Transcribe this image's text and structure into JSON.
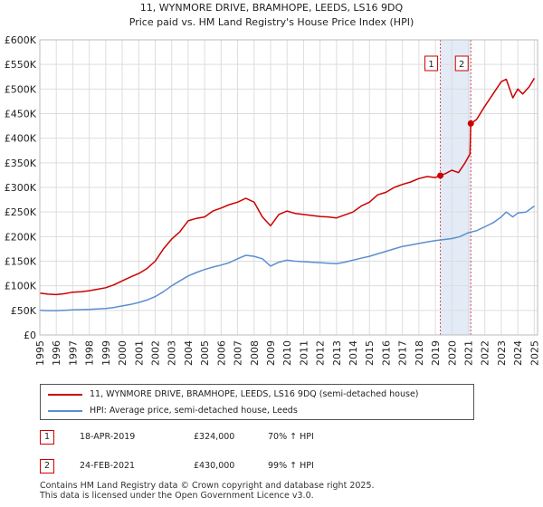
{
  "colors": {
    "property": "#cc0000",
    "hpi": "#5b8fd0",
    "grid": "#dddddd",
    "band": "#dce6f5"
  },
  "chart_data": {
    "type": "line",
    "title": "11, WYNMORE DRIVE, BRAMHOPE, LEEDS, LS16 9DQ",
    "subtitle": "Price paid vs. HM Land Registry's House Price Index (HPI)",
    "xlabel": "",
    "ylabel": "",
    "xlim": [
      1995,
      2025.2
    ],
    "ylim": [
      0,
      600000
    ],
    "grid": true,
    "x_ticks": [
      "1995",
      "1996",
      "1997",
      "1998",
      "1999",
      "2000",
      "2001",
      "2002",
      "2003",
      "2004",
      "2005",
      "2006",
      "2007",
      "2008",
      "2009",
      "2010",
      "2011",
      "2012",
      "2013",
      "2014",
      "2015",
      "2016",
      "2017",
      "2018",
      "2019",
      "2020",
      "2021",
      "2022",
      "2023",
      "2024",
      "2025"
    ],
    "y_ticks": [
      {
        "value": 0,
        "label": "£0"
      },
      {
        "value": 50000,
        "label": "£50K"
      },
      {
        "value": 100000,
        "label": "£100K"
      },
      {
        "value": 150000,
        "label": "£150K"
      },
      {
        "value": 200000,
        "label": "£200K"
      },
      {
        "value": 250000,
        "label": "£250K"
      },
      {
        "value": 300000,
        "label": "£300K"
      },
      {
        "value": 350000,
        "label": "£350K"
      },
      {
        "value": 400000,
        "label": "£400K"
      },
      {
        "value": 450000,
        "label": "£450K"
      },
      {
        "value": 500000,
        "label": "£500K"
      },
      {
        "value": 550000,
        "label": "£550K"
      },
      {
        "value": 600000,
        "label": "£600K"
      }
    ],
    "shaded_band": {
      "x_start": 2019.3,
      "x_end": 2021.15
    },
    "markers": [
      {
        "label": "1",
        "x": 2019.3,
        "y": 324000
      },
      {
        "label": "2",
        "x": 2021.15,
        "y": 430000
      }
    ],
    "series": [
      {
        "name": "11, WYNMORE DRIVE, BRAMHOPE, LEEDS, LS16 9DQ (semi-detached house)",
        "color": "#cc0000",
        "x": [
          1995,
          1995.5,
          1996,
          1996.5,
          1997,
          1997.5,
          1998,
          1998.5,
          1999,
          1999.5,
          2000,
          2000.5,
          2001,
          2001.5,
          2002,
          2002.5,
          2003,
          2003.5,
          2004,
          2004.5,
          2005,
          2005.5,
          2006,
          2006.5,
          2007,
          2007.5,
          2008,
          2008.5,
          2009,
          2009.5,
          2010,
          2010.5,
          2011,
          2011.5,
          2012,
          2012.5,
          2013,
          2013.5,
          2014,
          2014.5,
          2015,
          2015.5,
          2016,
          2016.5,
          2017,
          2017.5,
          2018,
          2018.5,
          2019,
          2019.3,
          2019.6,
          2020,
          2020.4,
          2020.8,
          2021.1,
          2021.15,
          2021.5,
          2022,
          2022.5,
          2023,
          2023.3,
          2023.7,
          2024,
          2024.3,
          2024.7,
          2025
        ],
        "values": [
          85000,
          83000,
          82000,
          84000,
          87000,
          88000,
          90000,
          93000,
          96000,
          102000,
          110000,
          118000,
          125000,
          135000,
          150000,
          175000,
          195000,
          210000,
          232000,
          237000,
          240000,
          252000,
          258000,
          265000,
          270000,
          278000,
          270000,
          240000,
          222000,
          245000,
          252000,
          247000,
          245000,
          243000,
          241000,
          240000,
          238000,
          244000,
          250000,
          262000,
          270000,
          285000,
          290000,
          300000,
          306000,
          311000,
          318000,
          322000,
          320000,
          324000,
          328000,
          335000,
          330000,
          350000,
          368000,
          430000,
          438000,
          465000,
          490000,
          515000,
          520000,
          482000,
          500000,
          490000,
          505000,
          522000
        ]
      },
      {
        "name": "HPI: Average price, semi-detached house, Leeds",
        "color": "#5b8fd0",
        "x": [
          1995,
          1995.5,
          1996,
          1996.5,
          1997,
          1997.5,
          1998,
          1998.5,
          1999,
          1999.5,
          2000,
          2000.5,
          2001,
          2001.5,
          2002,
          2002.5,
          2003,
          2003.5,
          2004,
          2004.5,
          2005,
          2005.5,
          2006,
          2006.5,
          2007,
          2007.5,
          2008,
          2008.5,
          2009,
          2009.5,
          2010,
          2010.5,
          2011,
          2011.5,
          2012,
          2012.5,
          2013,
          2013.5,
          2014,
          2014.5,
          2015,
          2015.5,
          2016,
          2016.5,
          2017,
          2017.5,
          2018,
          2018.5,
          2019,
          2019.5,
          2020,
          2020.5,
          2021,
          2021.5,
          2022,
          2022.5,
          2023,
          2023.3,
          2023.7,
          2024,
          2024.5,
          2025
        ],
        "values": [
          50000,
          49500,
          49500,
          50000,
          51000,
          51500,
          52000,
          53000,
          54000,
          56000,
          59000,
          62000,
          66000,
          71000,
          78000,
          88000,
          100000,
          110000,
          120000,
          127000,
          133000,
          138000,
          142000,
          147000,
          155000,
          162000,
          160000,
          155000,
          140000,
          148000,
          152000,
          150000,
          149000,
          148000,
          147000,
          146000,
          145000,
          148000,
          152000,
          156000,
          160000,
          165000,
          170000,
          175000,
          180000,
          183000,
          186000,
          189000,
          192000,
          194000,
          196000,
          200000,
          208000,
          212000,
          220000,
          228000,
          240000,
          250000,
          240000,
          248000,
          250000,
          262000
        ]
      }
    ]
  },
  "legend": {
    "property": "11, WYNMORE DRIVE, BRAMHOPE, LEEDS, LS16 9DQ (semi-detached house)",
    "hpi": "HPI: Average price, semi-detached house, Leeds"
  },
  "sales": [
    {
      "badge": "1",
      "date": "18-APR-2019",
      "price": "£324,000",
      "hpi": "70% ↑ HPI"
    },
    {
      "badge": "2",
      "date": "24-FEB-2021",
      "price": "£430,000",
      "hpi": "99% ↑ HPI"
    }
  ],
  "footer": {
    "line1": "Contains HM Land Registry data © Crown copyright and database right 2025.",
    "line2": "This data is licensed under the Open Government Licence v3.0."
  }
}
